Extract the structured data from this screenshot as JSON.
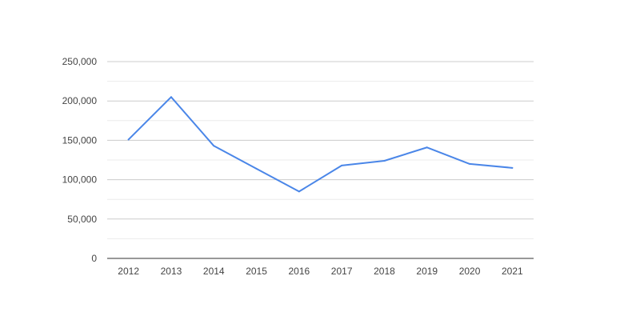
{
  "chart_data": {
    "type": "line",
    "title": "",
    "xlabel": "",
    "ylabel": "",
    "categories": [
      "2012",
      "2013",
      "2014",
      "2015",
      "2016",
      "2017",
      "2018",
      "2019",
      "2020",
      "2021"
    ],
    "series": [
      {
        "values": [
          151000,
          205000,
          143000,
          114000,
          85000,
          118000,
          124000,
          141000,
          120000,
          115000
        ],
        "color": "#4a86e8"
      }
    ],
    "ylim": [
      0,
      250000
    ],
    "y_ticks": [
      0,
      50000,
      100000,
      150000,
      200000,
      250000
    ],
    "y_tick_labels": [
      "0",
      "50,000",
      "100,000",
      "150,000",
      "200,000",
      "250,000"
    ],
    "grid": true,
    "minor_grid": true,
    "legend": "none",
    "colors": {
      "grid": "#cccccc",
      "minor_grid": "#ebebeb",
      "axis": "#333333",
      "text": "#444444"
    }
  }
}
